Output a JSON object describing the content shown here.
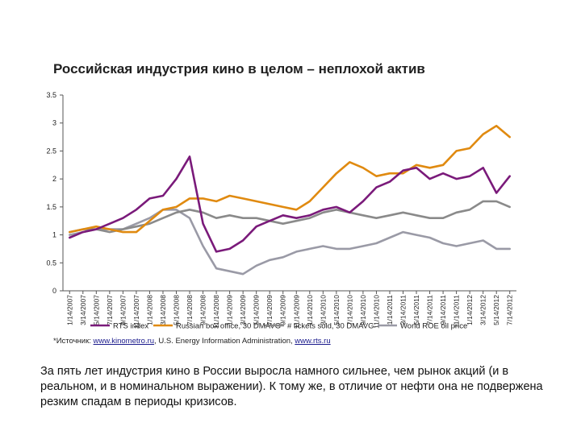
{
  "title": "Российская индустрия кино в целом – неплохой актив",
  "source": {
    "prefix": "*Источник: ",
    "link1": "www.kinometro.ru",
    "sep": ", U.S. Energy Information Administration, ",
    "link2": "www.rts.ru"
  },
  "caption": "За пять лет индустрия кино в России выросла намного сильнее, чем рынок акций (и в реальном, и в номинальном выражении). К тому же, в отличие от нефти она не подвержена резким спадам в периоды кризисов.",
  "colors": {
    "rts": "#7a1a7a",
    "box_office": "#e08a10",
    "tickets": "#8a8a8a",
    "oil": "#9a9aa6"
  },
  "chart_data": {
    "type": "line",
    "ylim": [
      0,
      3.5
    ],
    "yticks": [
      "0",
      "0.5",
      "1",
      "1.5",
      "2",
      "2.5",
      "3",
      "3.5"
    ],
    "categories": [
      "1/14/2007",
      "3/14/2007",
      "5/14/2007",
      "7/14/2007",
      "9/14/2007",
      "11/14/2007",
      "1/14/2008",
      "3/14/2008",
      "5/14/2008",
      "7/14/2008",
      "9/14/2008",
      "11/14/2008",
      "1/14/2009",
      "3/14/2009",
      "5/14/2009",
      "7/14/2009",
      "9/14/2009",
      "11/14/2009",
      "1/14/2010",
      "3/14/2010",
      "5/14/2010",
      "7/14/2010",
      "9/14/2010",
      "11/14/2010",
      "1/14/2011",
      "3/14/2011",
      "5/14/2011",
      "7/14/2011",
      "9/14/2011",
      "11/14/2011",
      "1/14/2012",
      "3/14/2012",
      "5/14/2012",
      "7/14/2012"
    ],
    "legend": {
      "placement": "bottom",
      "entries": [
        "RTS index",
        "Russian box office, 30 DMAVG",
        "# tickets sold, 30 DMAVG",
        "World ROE oil price"
      ]
    },
    "series": [
      {
        "name": "RTS index",
        "key": "rts",
        "values": [
          0.95,
          1.05,
          1.1,
          1.2,
          1.3,
          1.45,
          1.65,
          1.7,
          2.0,
          2.4,
          1.2,
          0.7,
          0.75,
          0.9,
          1.15,
          1.25,
          1.35,
          1.3,
          1.35,
          1.45,
          1.5,
          1.4,
          1.6,
          1.85,
          1.95,
          2.15,
          2.2,
          2.0,
          2.1,
          2.0,
          2.05,
          2.2,
          1.75,
          2.05
        ]
      },
      {
        "name": "Russian box office, 30 DMAVG",
        "key": "box_office",
        "values": [
          1.05,
          1.1,
          1.15,
          1.1,
          1.05,
          1.05,
          1.25,
          1.45,
          1.5,
          1.65,
          1.65,
          1.6,
          1.7,
          1.65,
          1.6,
          1.55,
          1.5,
          1.45,
          1.6,
          1.85,
          2.1,
          2.3,
          2.2,
          2.05,
          2.1,
          2.1,
          2.25,
          2.2,
          2.25,
          2.5,
          2.55,
          2.8,
          2.95,
          2.75
        ]
      },
      {
        "name": "# tickets sold, 30 DMAVG",
        "key": "tickets",
        "values": [
          1.05,
          1.1,
          1.1,
          1.05,
          1.1,
          1.15,
          1.2,
          1.3,
          1.4,
          1.45,
          1.4,
          1.3,
          1.35,
          1.3,
          1.3,
          1.25,
          1.2,
          1.25,
          1.3,
          1.4,
          1.45,
          1.4,
          1.35,
          1.3,
          1.35,
          1.4,
          1.35,
          1.3,
          1.3,
          1.4,
          1.45,
          1.6,
          1.6,
          1.5
        ]
      },
      {
        "name": "World ROE oil price",
        "key": "oil",
        "values": [
          1.0,
          1.05,
          1.1,
          1.1,
          1.1,
          1.2,
          1.3,
          1.45,
          1.45,
          1.3,
          0.8,
          0.4,
          0.35,
          0.3,
          0.45,
          0.55,
          0.6,
          0.7,
          0.75,
          0.8,
          0.75,
          0.75,
          0.8,
          0.85,
          0.95,
          1.05,
          1.0,
          0.95,
          0.85,
          0.8,
          0.85,
          0.9,
          0.75,
          0.75
        ]
      }
    ]
  }
}
